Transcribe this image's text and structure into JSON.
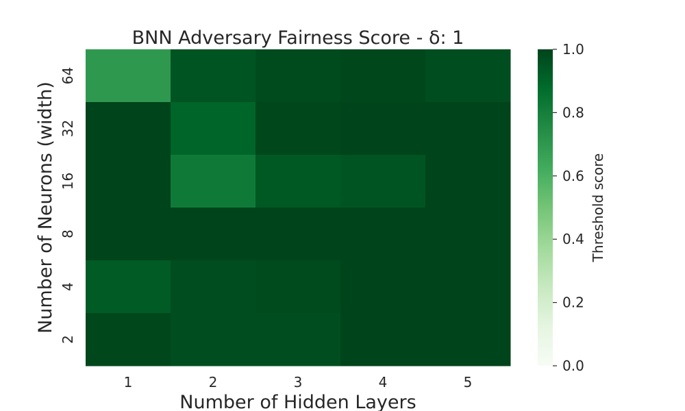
{
  "chart_data": {
    "type": "heatmap",
    "title": "BNN Adversary Fairness Score - δ: 1",
    "xlabel": "Number of Hidden Layers",
    "ylabel": "Number of Neurons (width)",
    "x_categories": [
      "1",
      "2",
      "3",
      "4",
      "5"
    ],
    "y_categories": [
      "64",
      "32",
      "16",
      "8",
      "4",
      "2"
    ],
    "values": [
      [
        0.7,
        0.95,
        0.98,
        0.99,
        0.97
      ],
      [
        1.0,
        0.9,
        0.99,
        1.0,
        1.0
      ],
      [
        1.0,
        0.82,
        0.94,
        0.95,
        1.0
      ],
      [
        1.0,
        1.0,
        1.0,
        1.0,
        1.0
      ],
      [
        0.93,
        0.97,
        0.98,
        1.0,
        1.0
      ],
      [
        0.99,
        0.97,
        0.97,
        1.0,
        1.0
      ]
    ],
    "colorbar": {
      "label": "Threshold score",
      "range": [
        0.0,
        1.0
      ],
      "ticks": [
        "0.0",
        "0.2",
        "0.4",
        "0.6",
        "0.8",
        "1.0"
      ],
      "colormap": "Greens"
    },
    "grid": false
  }
}
